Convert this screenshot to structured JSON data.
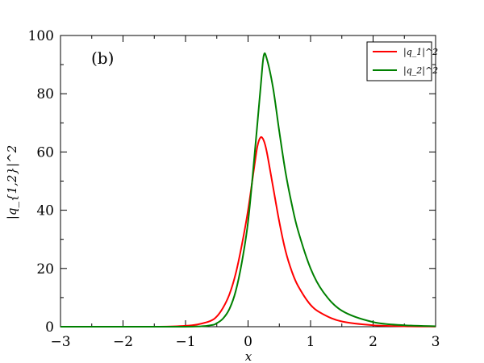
{
  "chart_data": {
    "type": "line",
    "panel_label": "(b)",
    "xlabel": "x",
    "ylabel": "|q_{1,2}|^2",
    "xlim": [
      -3,
      3
    ],
    "ylim": [
      0,
      100
    ],
    "x_ticks": [
      -3,
      -2,
      -1,
      0,
      1,
      2,
      3
    ],
    "x_tick_labels": [
      "−3",
      "−2",
      "−1",
      "0",
      "1",
      "2",
      "3"
    ],
    "y_ticks": [
      0,
      20,
      40,
      60,
      80,
      100
    ],
    "y_tick_labels": [
      "0",
      "20",
      "40",
      "60",
      "80",
      "100"
    ],
    "legend_position": "top-right",
    "series": [
      {
        "name": "|q_1|^2",
        "color": "#ff0000",
        "x": [
          -3,
          -1.5,
          -1.0,
          -0.8,
          -0.6,
          -0.5,
          -0.4,
          -0.3,
          -0.2,
          -0.1,
          0,
          0.1,
          0.15,
          0.2,
          0.25,
          0.3,
          0.4,
          0.5,
          0.6,
          0.7,
          0.8,
          1.0,
          1.2,
          1.5,
          2.0,
          2.5,
          3.0
        ],
        "y": [
          0,
          0,
          0.3,
          0.8,
          2.0,
          3.5,
          6.5,
          11,
          18,
          28,
          40,
          55,
          62,
          65,
          64,
          60,
          48,
          36,
          26,
          19,
          14,
          7.5,
          4.3,
          1.8,
          0.5,
          0.15,
          0.05
        ]
      },
      {
        "name": "|q_2|^2",
        "color": "#008000",
        "x": [
          -3,
          -1.0,
          -0.6,
          -0.5,
          -0.4,
          -0.3,
          -0.2,
          -0.1,
          0,
          0.1,
          0.2,
          0.25,
          0.3,
          0.4,
          0.5,
          0.6,
          0.7,
          0.8,
          1.0,
          1.2,
          1.5,
          2.0,
          2.5,
          3.0
        ],
        "y": [
          0,
          0,
          0.5,
          1.2,
          2.8,
          6.0,
          12,
          22,
          36,
          58,
          82,
          93,
          92,
          82,
          67,
          53,
          42,
          33,
          20,
          12,
          5.5,
          1.6,
          0.5,
          0.15
        ]
      }
    ]
  }
}
